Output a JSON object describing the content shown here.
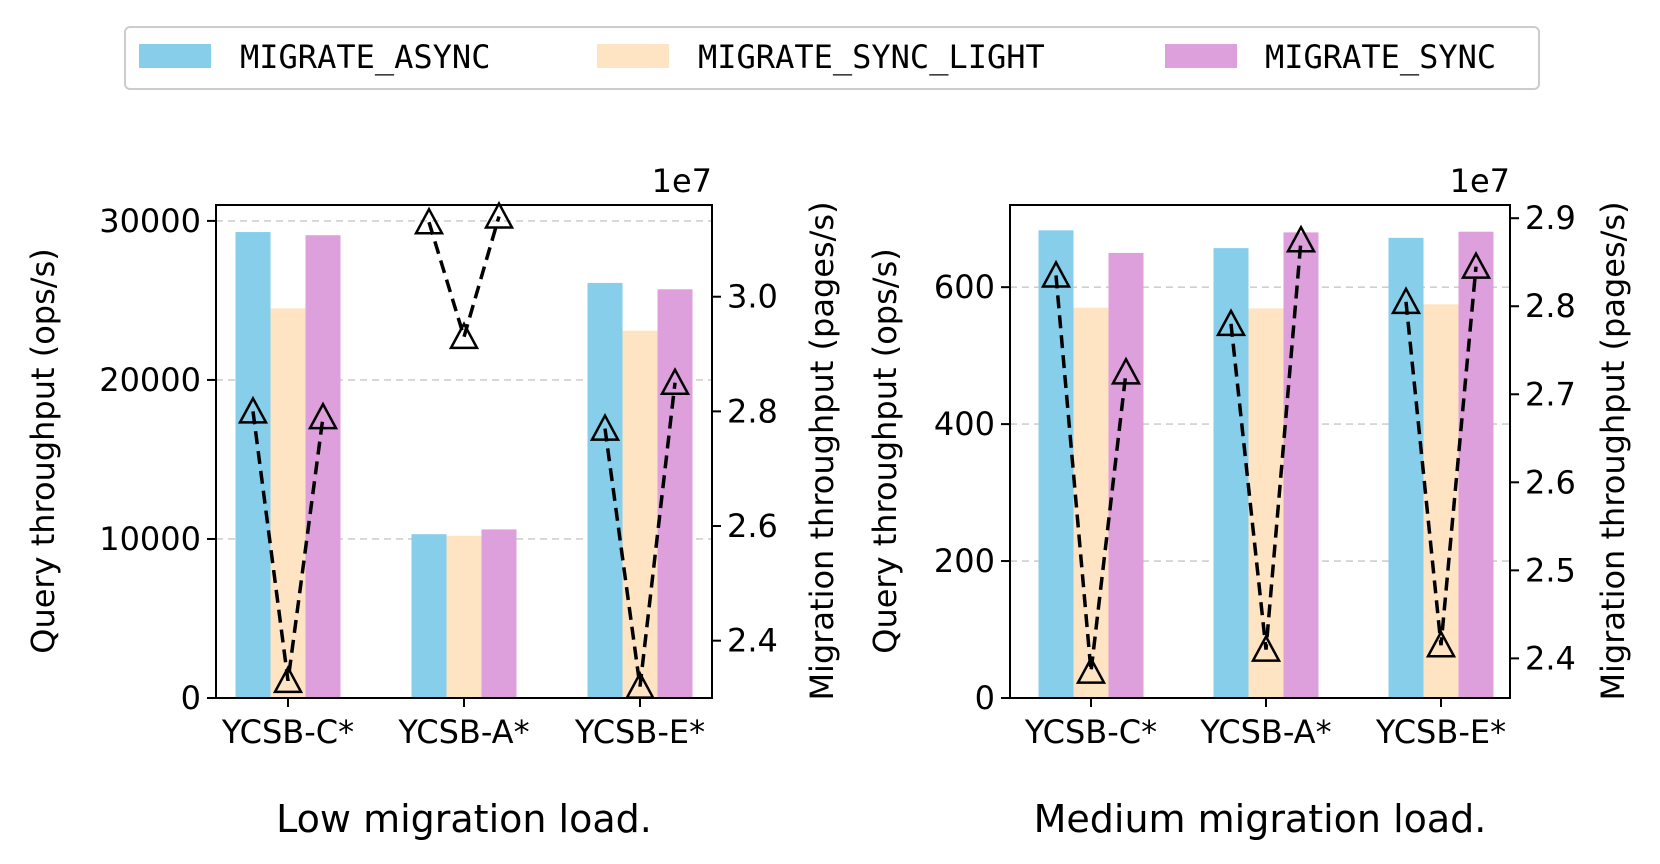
{
  "legend": [
    {
      "label": "MIGRATE_ASYNC",
      "color": "#87CEEB"
    },
    {
      "label": "MIGRATE_SYNC_LIGHT",
      "color": "#FFE4C4"
    },
    {
      "label": "MIGRATE_SYNC",
      "color": "#DDA0DD"
    }
  ],
  "chart_data": [
    {
      "type": "bar",
      "title": "Low migration load.",
      "categories": [
        "YCSB-C*",
        "YCSB-A*",
        "YCSB-E*"
      ],
      "ylabel": "Query throughput (ops/s)",
      "ylim": [
        0,
        31000
      ],
      "yticks": [
        0,
        10000,
        20000,
        30000
      ],
      "ytick_labels": [
        "0",
        "10000",
        "20000",
        "30000"
      ],
      "series": [
        {
          "name": "MIGRATE_ASYNC",
          "values": [
            29300,
            10300,
            26100
          ]
        },
        {
          "name": "MIGRATE_SYNC_LIGHT",
          "values": [
            24500,
            10200,
            23100
          ]
        },
        {
          "name": "MIGRATE_SYNC",
          "values": [
            29100,
            10600,
            25700
          ]
        }
      ],
      "y2label": "Migration throughput (pages/s)",
      "y2_multiplier": "1e7",
      "y2lim": [
        2.3,
        3.16
      ],
      "y2ticks": [
        2.4,
        2.6,
        2.8,
        3.0
      ],
      "y2tick_labels": [
        "2.4",
        "2.6",
        "2.8",
        "3.0"
      ],
      "migration_line": {
        "marker": "triangle",
        "style": "dashed",
        "values": [
          [
            2.8,
            2.33,
            2.79
          ],
          [
            3.13,
            2.93,
            3.14
          ],
          [
            2.77,
            2.32,
            2.85
          ]
        ]
      },
      "grid": "horizontal-dashed"
    },
    {
      "type": "bar",
      "title": "Medium migration load.",
      "categories": [
        "YCSB-C*",
        "YCSB-A*",
        "YCSB-E*"
      ],
      "ylabel": "Query throughput (ops/s)",
      "ylim": [
        0,
        720
      ],
      "yticks": [
        0,
        200,
        400,
        600
      ],
      "ytick_labels": [
        "0",
        "200",
        "400",
        "600"
      ],
      "series": [
        {
          "name": "MIGRATE_ASYNC",
          "values": [
            683,
            657,
            672
          ]
        },
        {
          "name": "MIGRATE_SYNC_LIGHT",
          "values": [
            570,
            569,
            575
          ]
        },
        {
          "name": "MIGRATE_SYNC",
          "values": [
            650,
            680,
            681
          ]
        }
      ],
      "y2label": "Migration throughput (pages/s)",
      "y2_multiplier": "1e7",
      "y2lim": [
        2.355,
        2.915
      ],
      "y2ticks": [
        2.4,
        2.5,
        2.6,
        2.7,
        2.8,
        2.9
      ],
      "y2tick_labels": [
        "2.4",
        "2.5",
        "2.6",
        "2.7",
        "2.8",
        "2.9"
      ],
      "migration_line": {
        "marker": "triangle",
        "style": "dashed",
        "values": [
          [
            2.835,
            2.385,
            2.725
          ],
          [
            2.78,
            2.41,
            2.875
          ],
          [
            2.805,
            2.415,
            2.845
          ]
        ]
      },
      "grid": "horizontal-dashed"
    }
  ]
}
